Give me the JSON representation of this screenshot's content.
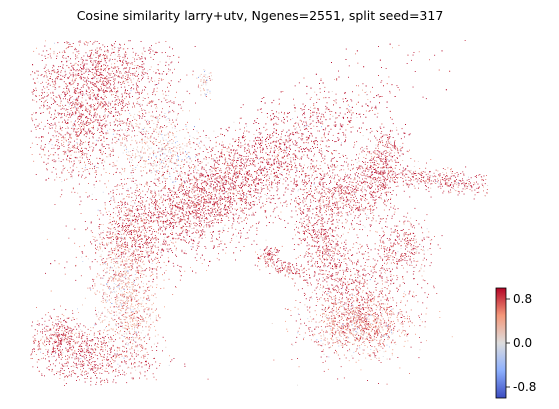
{
  "chart_data": {
    "type": "scatter",
    "title": "Cosine similarity larry+utv, Ngenes=2551, split seed=317",
    "xlabel": "",
    "ylabel": "",
    "grid": false,
    "axes_visible": false,
    "colormap": "coolwarm",
    "colorbar": {
      "min": -1.0,
      "max": 1.0,
      "ticks": [
        0.8,
        0.0,
        -0.8
      ],
      "tick_labels": [
        "0.8",
        "0.0",
        "-0.8"
      ],
      "placement": "bottom-right"
    },
    "point_color": {
      "high": "#b40426",
      "mid": "#dddddd",
      "low": "#3b4cc0"
    }
  }
}
